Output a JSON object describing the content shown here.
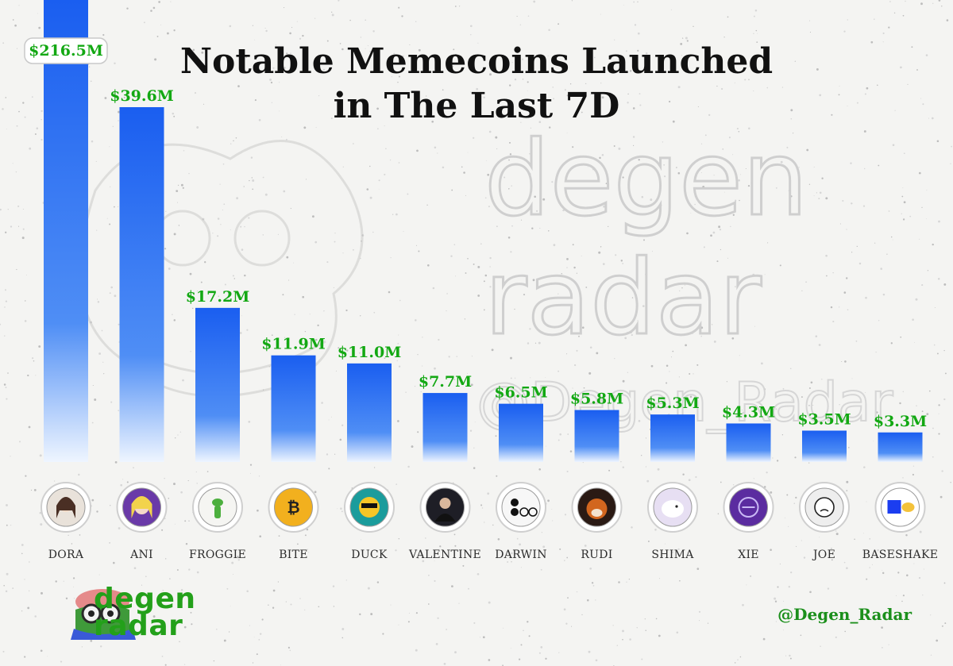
{
  "chart_data": {
    "type": "bar",
    "title_lines": [
      "Notable Memecoins Launched",
      "in The Last 7D"
    ],
    "categories": [
      "DORA",
      "ANI",
      "FROGGIE",
      "BITE",
      "DUCK",
      "VALENTINE",
      "DARWIN",
      "RUDI",
      "SHIMA",
      "XIE",
      "JOE",
      "BASESHAKE"
    ],
    "values": [
      216.5,
      39.6,
      17.2,
      11.9,
      11.0,
      7.7,
      6.5,
      5.8,
      5.3,
      4.3,
      3.5,
      3.3
    ],
    "value_labels": [
      "$216.5M",
      "$39.6M",
      "$17.2M",
      "$11.9M",
      "$11.0M",
      "$7.7M",
      "$6.5M",
      "$5.8M",
      "$5.3M",
      "$4.3M",
      "$3.5M",
      "$3.3M"
    ],
    "xlabel": "",
    "ylabel": "",
    "grid": false,
    "legend": "none",
    "bar_color_top": "#1a5ef0",
    "bar_color_bottom": "#e9f2ff",
    "label_color": "#13a813",
    "icons": [
      "girl-avatar-icon",
      "anime-girl-icon",
      "frog-icon",
      "bitcoin-icon",
      "duck-icon",
      "man-portrait-icon",
      "dots-logo-icon",
      "red-panda-icon",
      "bird-icon",
      "purple-emblem-icon",
      "doodle-face-icon",
      "hand-shake-icon"
    ]
  },
  "watermark": {
    "lines": [
      "degen",
      "radar",
      "@Degen_Radar"
    ]
  },
  "footer": {
    "logo_lines": [
      "degen",
      "radar"
    ],
    "handle": "@Degen_Radar"
  },
  "colors": {
    "background": "#f4f4f2",
    "accent_green": "#23a01a"
  }
}
